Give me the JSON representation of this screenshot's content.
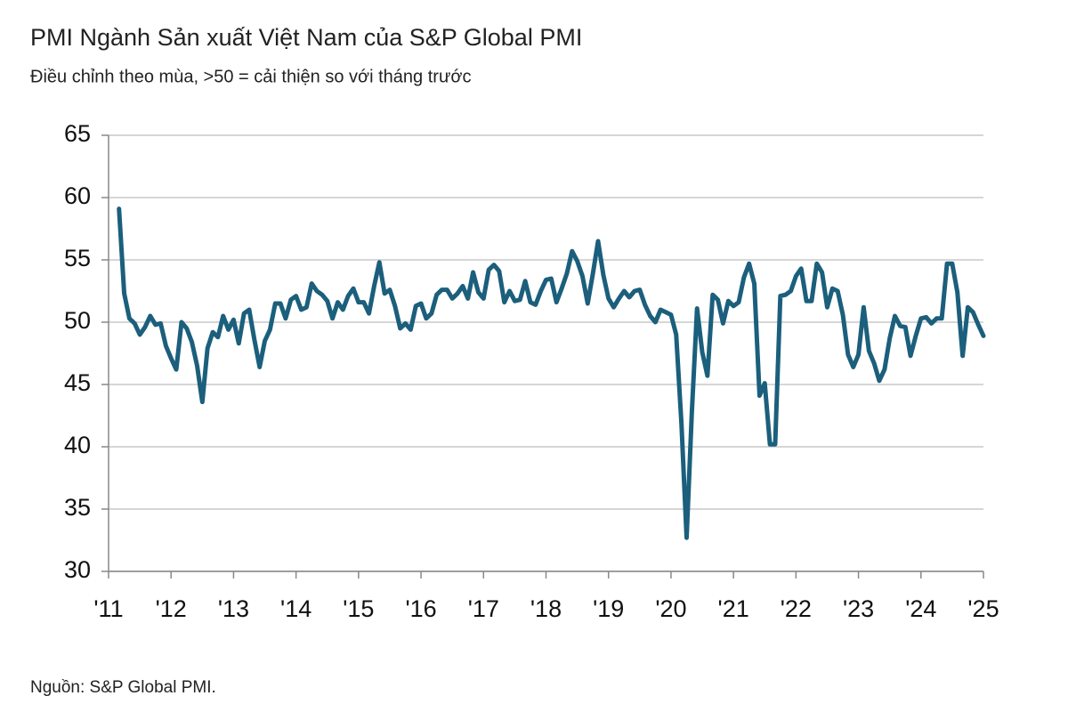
{
  "chart_data": {
    "type": "line",
    "title": "PMI Ngành Sản xuất Việt Nam của S&P Global PMI",
    "subtitle": "Điều chỉnh theo mùa, >50 = cải thiện so với tháng trước",
    "source": "Nguồn: S&P Global PMI.",
    "x": [
      2011.167,
      2011.25,
      2011.333,
      2011.417,
      2011.5,
      2011.583,
      2011.667,
      2011.75,
      2011.833,
      2011.917,
      2012.0,
      2012.083,
      2012.167,
      2012.25,
      2012.333,
      2012.417,
      2012.5,
      2012.583,
      2012.667,
      2012.75,
      2012.833,
      2012.917,
      2013.0,
      2013.083,
      2013.167,
      2013.25,
      2013.333,
      2013.417,
      2013.5,
      2013.583,
      2013.667,
      2013.75,
      2013.833,
      2013.917,
      2014.0,
      2014.083,
      2014.167,
      2014.25,
      2014.333,
      2014.417,
      2014.5,
      2014.583,
      2014.667,
      2014.75,
      2014.833,
      2014.917,
      2015.0,
      2015.083,
      2015.167,
      2015.25,
      2015.333,
      2015.417,
      2015.5,
      2015.583,
      2015.667,
      2015.75,
      2015.833,
      2015.917,
      2016.0,
      2016.083,
      2016.167,
      2016.25,
      2016.333,
      2016.417,
      2016.5,
      2016.583,
      2016.667,
      2016.75,
      2016.833,
      2016.917,
      2017.0,
      2017.083,
      2017.167,
      2017.25,
      2017.333,
      2017.417,
      2017.5,
      2017.583,
      2017.667,
      2017.75,
      2017.833,
      2017.917,
      2018.0,
      2018.083,
      2018.167,
      2018.25,
      2018.333,
      2018.417,
      2018.5,
      2018.583,
      2018.667,
      2018.75,
      2018.833,
      2018.917,
      2019.0,
      2019.083,
      2019.167,
      2019.25,
      2019.333,
      2019.417,
      2019.5,
      2019.583,
      2019.667,
      2019.75,
      2019.833,
      2019.917,
      2020.0,
      2020.083,
      2020.167,
      2020.25,
      2020.333,
      2020.417,
      2020.5,
      2020.583,
      2020.667,
      2020.75,
      2020.833,
      2020.917,
      2021.0,
      2021.083,
      2021.167,
      2021.25,
      2021.333,
      2021.417,
      2021.5,
      2021.583,
      2021.667,
      2021.75,
      2021.833,
      2021.917,
      2022.0,
      2022.083,
      2022.167,
      2022.25,
      2022.333,
      2022.417,
      2022.5,
      2022.583,
      2022.667,
      2022.75,
      2022.833,
      2022.917,
      2023.0,
      2023.083,
      2023.167,
      2023.25,
      2023.333,
      2023.417,
      2023.5,
      2023.583,
      2023.667,
      2023.75,
      2023.833,
      2023.917,
      2024.0,
      2024.083,
      2024.167,
      2024.25,
      2024.333,
      2024.417,
      2024.5,
      2024.583,
      2024.667,
      2024.75,
      2024.833,
      2024.917,
      2025.0
    ],
    "values": [
      59.1,
      52.3,
      50.3,
      49.9,
      49.0,
      49.6,
      50.5,
      49.8,
      49.9,
      48.1,
      47.1,
      46.2,
      50.0,
      49.5,
      48.4,
      46.5,
      43.6,
      47.9,
      49.2,
      48.8,
      50.5,
      49.4,
      50.2,
      48.3,
      50.7,
      51.0,
      48.6,
      46.4,
      48.5,
      49.4,
      51.5,
      51.5,
      50.3,
      51.8,
      52.1,
      51.0,
      51.2,
      53.1,
      52.5,
      52.2,
      51.7,
      50.3,
      51.6,
      51.0,
      52.1,
      52.7,
      51.6,
      51.6,
      50.7,
      52.9,
      54.8,
      52.3,
      52.6,
      51.3,
      49.5,
      49.9,
      49.4,
      51.3,
      51.5,
      50.3,
      50.7,
      52.2,
      52.6,
      52.6,
      51.9,
      52.3,
      52.9,
      51.9,
      54.0,
      52.4,
      51.9,
      54.2,
      54.6,
      54.1,
      51.6,
      52.5,
      51.7,
      51.8,
      53.3,
      51.6,
      51.4,
      52.5,
      53.4,
      53.5,
      51.6,
      52.7,
      53.9,
      55.7,
      54.9,
      53.7,
      51.5,
      53.9,
      56.5,
      53.8,
      51.9,
      51.2,
      51.9,
      52.5,
      52.0,
      52.5,
      52.6,
      51.4,
      50.5,
      50.0,
      51.0,
      50.8,
      50.6,
      49.0,
      41.9,
      32.7,
      42.7,
      51.1,
      47.6,
      45.7,
      52.2,
      51.8,
      49.9,
      51.7,
      51.3,
      51.6,
      53.6,
      54.7,
      53.1,
      44.1,
      45.1,
      40.2,
      40.2,
      52.1,
      52.2,
      52.5,
      53.7,
      54.3,
      51.7,
      51.7,
      54.7,
      54.0,
      51.2,
      52.7,
      52.5,
      50.6,
      47.4,
      46.4,
      47.4,
      51.2,
      47.7,
      46.7,
      45.3,
      46.2,
      48.7,
      50.5,
      49.7,
      49.6,
      47.3,
      48.9,
      50.3,
      50.4,
      49.9,
      50.3,
      50.3,
      54.7,
      54.7,
      52.4,
      47.3,
      51.2,
      50.8,
      49.8,
      48.9
    ],
    "color": "#1b5f7c",
    "xlim": [
      2011,
      2025
    ],
    "xticks": [
      {
        "value": 2011,
        "label": "'11"
      },
      {
        "value": 2012,
        "label": "'12"
      },
      {
        "value": 2013,
        "label": "'13"
      },
      {
        "value": 2014,
        "label": "'14"
      },
      {
        "value": 2015,
        "label": "'15"
      },
      {
        "value": 2016,
        "label": "'16"
      },
      {
        "value": 2017,
        "label": "'17"
      },
      {
        "value": 2018,
        "label": "'18"
      },
      {
        "value": 2019,
        "label": "'19"
      },
      {
        "value": 2020,
        "label": "'20"
      },
      {
        "value": 2021,
        "label": "'21"
      },
      {
        "value": 2022,
        "label": "'22"
      },
      {
        "value": 2023,
        "label": "'23"
      },
      {
        "value": 2024,
        "label": "'24"
      },
      {
        "value": 2025,
        "label": "'25"
      }
    ],
    "ylim": [
      30,
      65
    ],
    "yticks": [
      30,
      35,
      40,
      45,
      50,
      55,
      60,
      65
    ],
    "grid": true
  }
}
